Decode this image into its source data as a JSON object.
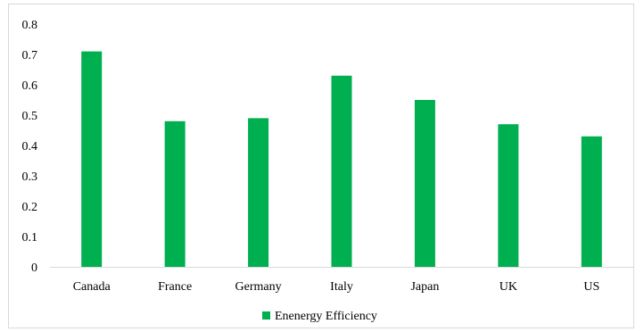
{
  "chart_data": {
    "type": "bar",
    "title": "",
    "xlabel": "",
    "ylabel": "",
    "categories": [
      "Canada",
      "France",
      "Germany",
      "Italy",
      "Japan",
      "UK",
      "US"
    ],
    "series": [
      {
        "name": "Enenergy Efficiency",
        "color": "#00b050",
        "values": [
          0.71,
          0.48,
          0.49,
          0.63,
          0.55,
          0.47,
          0.43
        ]
      }
    ],
    "ylim": [
      0,
      0.8
    ],
    "yticks": [
      "0",
      "0.1",
      "0.2",
      "0.3",
      "0.4",
      "0.5",
      "0.6",
      "0.7",
      "0.8"
    ],
    "grid": false,
    "legend_position": "bottom"
  }
}
